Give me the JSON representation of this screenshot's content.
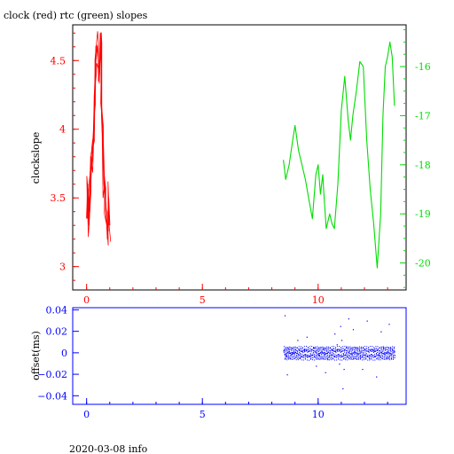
{
  "title": "clock (red) rtc (green) slopes",
  "footer": "2020-03-08 info",
  "colors": {
    "clock": "#ff0000",
    "rtc": "#00dd00",
    "offset": "#0000ff",
    "frame": "#000000"
  },
  "chart_data": [
    {
      "type": "line",
      "title": "clock (red) rtc (green) slopes",
      "ylabel": "clockslope",
      "xlim": [
        -0.6,
        13.8
      ],
      "ylim": [
        2.83,
        4.76
      ],
      "xticks": [
        0,
        5,
        10
      ],
      "xtick_labels": [
        "0",
        "5",
        "10"
      ],
      "yticks": [
        3,
        3.5,
        4,
        4.5
      ],
      "ytick_labels": [
        "3",
        "3.5",
        "4",
        "4.5"
      ],
      "y2lim": [
        -20.55,
        -15.15
      ],
      "y2ticks": [
        -16,
        -17,
        -18,
        -19,
        -20
      ],
      "y2tick_labels": [
        "-16",
        "-17",
        "-18",
        "-19",
        "-20"
      ],
      "series": [
        {
          "axis": "left",
          "color": "#ff0000",
          "x": [
            0.0,
            0.05,
            0.1,
            0.15,
            0.2,
            0.25,
            0.3,
            0.35,
            0.4,
            0.45,
            0.5,
            0.55,
            0.6,
            0.62,
            0.65,
            0.7,
            0.75,
            0.8,
            0.85,
            0.9,
            0.95,
            1.0
          ],
          "y": [
            3.35,
            3.6,
            3.3,
            3.5,
            3.7,
            3.8,
            4.0,
            4.3,
            4.5,
            4.6,
            4.55,
            4.4,
            4.7,
            4.6,
            4.1,
            3.9,
            3.6,
            3.5,
            3.4,
            3.2,
            3.5,
            3.3
          ]
        },
        {
          "axis": "right",
          "color": "#00dd00",
          "x": [
            8.5,
            8.6,
            8.75,
            8.9,
            9.0,
            9.15,
            9.3,
            9.45,
            9.6,
            9.75,
            9.9,
            10.0,
            10.1,
            10.2,
            10.25,
            10.35,
            10.5,
            10.6,
            10.7,
            10.85,
            11.0,
            11.15,
            11.3,
            11.4,
            11.5,
            11.65,
            11.8,
            11.95,
            12.1,
            12.25,
            12.4,
            12.55,
            12.7,
            12.8,
            12.9,
            13.0,
            13.1,
            13.2,
            13.3
          ],
          "y": [
            -17.9,
            -18.3,
            -18.0,
            -17.5,
            -17.2,
            -17.7,
            -18.0,
            -18.3,
            -18.7,
            -19.1,
            -18.2,
            -18.0,
            -18.6,
            -18.2,
            -18.6,
            -19.3,
            -19.0,
            -19.2,
            -19.3,
            -18.4,
            -16.9,
            -16.2,
            -17.1,
            -17.5,
            -17.0,
            -16.5,
            -15.9,
            -16.0,
            -17.5,
            -18.5,
            -19.2,
            -20.1,
            -19.0,
            -17.0,
            -16.0,
            -15.8,
            -15.5,
            -15.8,
            -16.8
          ]
        }
      ]
    },
    {
      "type": "scatter",
      "ylabel": "offset(ms)",
      "xlim": [
        -0.6,
        13.8
      ],
      "ylim": [
        -0.048,
        0.042
      ],
      "xticks": [
        0,
        5,
        10
      ],
      "xtick_labels": [
        "0",
        "5",
        "10"
      ],
      "yticks": [
        0.04,
        0.02,
        0,
        -0.02,
        -0.04
      ],
      "ytick_labels": [
        "0.04",
        "0.02",
        "0",
        "−0.02",
        "−0.04"
      ],
      "series": [
        {
          "color": "#0000ff",
          "x": [
            8.5,
            8.6,
            8.7,
            8.8,
            8.9,
            9.0,
            9.2,
            9.4,
            9.6,
            9.8,
            10.0,
            10.2,
            10.4,
            10.6,
            10.8,
            10.9,
            11.0,
            11.1,
            11.2,
            11.4,
            11.6,
            11.8,
            12.0,
            12.2,
            12.4,
            12.6,
            12.8,
            13.0,
            13.2,
            13.3,
            8.55,
            9.5,
            10.3,
            10.95,
            11.05,
            11.5,
            12.1,
            12.5,
            13.05,
            8.65,
            9.1,
            9.9,
            10.7,
            11.3,
            11.9,
            12.7
          ],
          "y": [
            0.002,
            -0.003,
            0.004,
            -0.002,
            0.001,
            0.003,
            -0.004,
            0.002,
            -0.003,
            0.005,
            -0.002,
            0.004,
            -0.006,
            0.003,
            0.008,
            -0.01,
            0.012,
            -0.015,
            0.006,
            -0.004,
            0.005,
            -0.003,
            0.004,
            -0.005,
            0.003,
            -0.002,
            0.006,
            -0.004,
            0.003,
            -0.002,
            0.035,
            0.015,
            -0.018,
            0.025,
            -0.033,
            0.022,
            0.03,
            -0.022,
            0.027,
            -0.02,
            0.012,
            -0.012,
            0.018,
            0.032,
            -0.015,
            0.02
          ]
        }
      ]
    }
  ]
}
